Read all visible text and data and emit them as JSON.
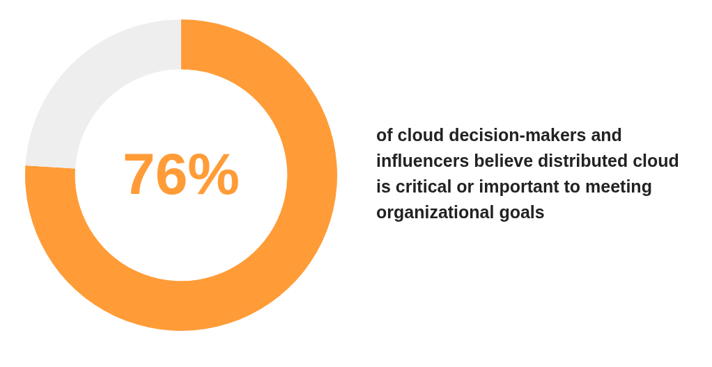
{
  "chart_data": {
    "type": "donut",
    "categories": [
      null,
      null
    ],
    "values": [
      76,
      24
    ],
    "colors": [
      "#ff9c38",
      "#eeeeee"
    ],
    "value_labels": [
      "76%",
      null
    ],
    "legend": false,
    "annotations": [
      "of cloud decision-makers and influencers believe distributed cloud is critical or important to meeting organizational goals"
    ]
  }
}
